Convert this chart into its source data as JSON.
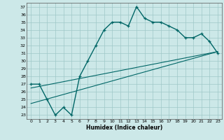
{
  "title": "",
  "xlabel": "Humidex (Indice chaleur)",
  "bg_color": "#cce8e8",
  "line_color": "#006666",
  "xlim": [
    -0.5,
    23.5
  ],
  "ylim": [
    22.5,
    37.5
  ],
  "xticks": [
    0,
    1,
    2,
    3,
    4,
    5,
    6,
    7,
    8,
    9,
    10,
    11,
    12,
    13,
    14,
    15,
    16,
    17,
    18,
    19,
    20,
    21,
    22,
    23
  ],
  "yticks": [
    23,
    24,
    25,
    26,
    27,
    28,
    29,
    30,
    31,
    32,
    33,
    34,
    35,
    36,
    37
  ],
  "main_x": [
    0,
    1,
    2,
    3,
    4,
    5,
    6,
    7,
    8,
    9,
    10,
    11,
    12,
    13,
    14,
    15,
    16,
    17,
    18,
    19,
    20,
    21,
    22,
    23
  ],
  "main_y": [
    27,
    27,
    25,
    23,
    24,
    23,
    28,
    30,
    32,
    34,
    35,
    35,
    34.5,
    37,
    35.5,
    35,
    35,
    34.5,
    34,
    33,
    33,
    33.5,
    32.5,
    31
  ],
  "line2_x": [
    0,
    23
  ],
  "line2_y": [
    26.5,
    31.2
  ],
  "line3_x": [
    0,
    23
  ],
  "line3_y": [
    24.5,
    31.2
  ],
  "grid_color": "#9fc8c8",
  "marker": "+"
}
